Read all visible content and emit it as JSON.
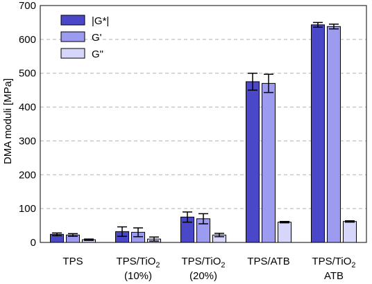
{
  "chart_data": {
    "type": "bar",
    "title": "",
    "xlabel": "",
    "ylabel": "DMA moduli [MPa]",
    "ylim": [
      0,
      700
    ],
    "yticks": [
      0,
      100,
      200,
      300,
      400,
      500,
      600,
      700
    ],
    "grid": "horizontal dashed",
    "legend_position": "top-left",
    "categories": [
      {
        "lines": [
          [
            "TPS"
          ]
        ]
      },
      {
        "lines": [
          [
            "TPS/TiO",
            {
              "sub": "2"
            }
          ],
          [
            "(10%)"
          ]
        ]
      },
      {
        "lines": [
          [
            "TPS/TiO",
            {
              "sub": "2"
            }
          ],
          [
            "(20%)"
          ]
        ]
      },
      {
        "lines": [
          [
            "TPS/ATB"
          ]
        ]
      },
      {
        "lines": [
          [
            "TPS/TiO",
            {
              "sub": "2"
            }
          ],
          [
            "ATB"
          ]
        ]
      }
    ],
    "series": [
      {
        "name": "|G*|",
        "color": "#4a48c8",
        "values": [
          24,
          32,
          75,
          475,
          643
        ],
        "errors": [
          4,
          14,
          15,
          25,
          7
        ]
      },
      {
        "name": "G'",
        "color": "#9d9bf0",
        "values": [
          22,
          30,
          70,
          470,
          638
        ],
        "errors": [
          4,
          13,
          15,
          27,
          7
        ]
      },
      {
        "name": "G\"",
        "color": "#d6d5fa",
        "values": [
          8,
          10,
          22,
          60,
          62
        ],
        "errors": [
          2,
          6,
          5,
          2,
          2
        ]
      }
    ]
  }
}
